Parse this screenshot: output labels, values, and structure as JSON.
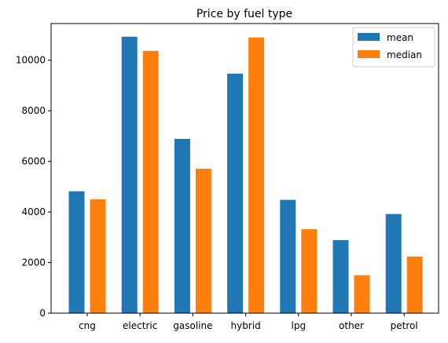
{
  "chart_data": {
    "type": "bar",
    "title": "Price by fuel type",
    "xlabel": "",
    "ylabel": "",
    "categories": [
      "cng",
      "electric",
      "gasoline",
      "hybrid",
      "lpg",
      "other",
      "petrol"
    ],
    "series": [
      {
        "name": "mean",
        "color": "#1f77b4",
        "values": [
          4820,
          10930,
          6890,
          9470,
          4480,
          2890,
          3920
        ]
      },
      {
        "name": "median",
        "color": "#ff7f0e",
        "values": [
          4500,
          10370,
          5710,
          10900,
          3320,
          1500,
          2240
        ]
      }
    ],
    "ylim": [
      0,
      11450
    ],
    "yticks": [
      0,
      2000,
      4000,
      6000,
      8000,
      10000
    ],
    "ytick_labels": [
      "0",
      "2000",
      "4000",
      "6000",
      "8000",
      "10000"
    ],
    "grid": false,
    "legend_position": "top-right"
  }
}
